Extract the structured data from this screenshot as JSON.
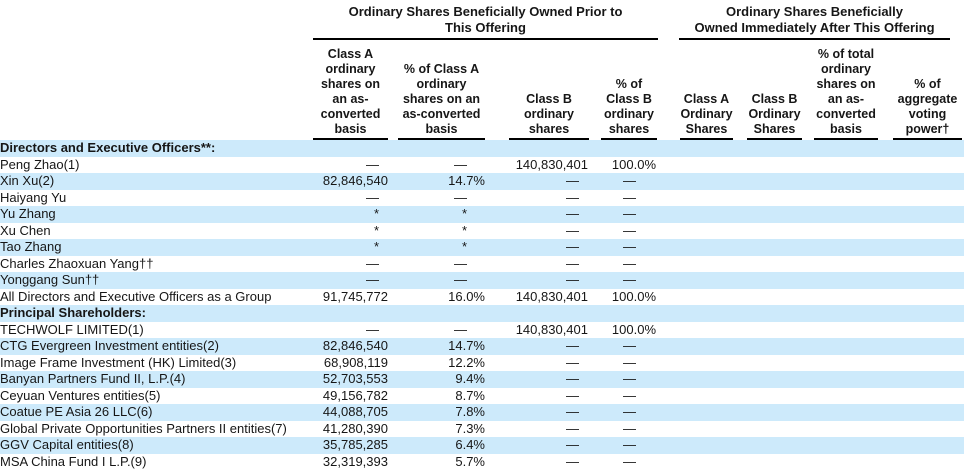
{
  "colors": {
    "stripe_blue": "#cdeafb",
    "rule_black": "#000000",
    "text": "#161616"
  },
  "table": {
    "groups": [
      {
        "title": "Ordinary Shares Beneficially Owned Prior to\nThis Offering"
      },
      {
        "title": "Ordinary Shares Beneficially\nOwned Immediately After This Offering"
      }
    ],
    "columns": [
      {
        "label": "Class A\nordinary\nshares on\nan as-\nconverted\nbasis"
      },
      {
        "label": "% of Class A\nordinary\nshares on an\nas-converted\nbasis"
      },
      {
        "label": "Class B\nordinary\nshares"
      },
      {
        "label": "% of\nClass B\nordinary\nshares"
      },
      {
        "label": "Class A\nOrdinary\nShares"
      },
      {
        "label": "Class B\nOrdinary\nShares"
      },
      {
        "label": "% of total\nordinary\nshares on\nan as-\nconverted\nbasis"
      },
      {
        "label": "% of\naggregate\nvoting\npower†"
      }
    ],
    "rows": [
      {
        "name": "Directors and Executive Officers**:",
        "section": true,
        "values": [
          "",
          "",
          "",
          "",
          "",
          "",
          "",
          ""
        ]
      },
      {
        "name": "Peng Zhao(1)",
        "values": [
          "—",
          "—",
          "140,830,401",
          "100.0%",
          "",
          "",
          "",
          ""
        ]
      },
      {
        "name": "Xin Xu(2)",
        "values": [
          "82,846,540",
          "14.7%",
          "—",
          "—",
          "",
          "",
          "",
          ""
        ]
      },
      {
        "name": "Haiyang Yu",
        "values": [
          "—",
          "—",
          "—",
          "—",
          "",
          "",
          "",
          ""
        ]
      },
      {
        "name": "Yu Zhang",
        "values": [
          "*",
          "*",
          "—",
          "—",
          "",
          "",
          "",
          ""
        ]
      },
      {
        "name": "Xu Chen",
        "values": [
          "*",
          "*",
          "—",
          "—",
          "",
          "",
          "",
          ""
        ]
      },
      {
        "name": "Tao Zhang",
        "values": [
          "*",
          "*",
          "—",
          "—",
          "",
          "",
          "",
          ""
        ]
      },
      {
        "name": "Charles Zhaoxuan Yang††",
        "values": [
          "—",
          "—",
          "—",
          "—",
          "",
          "",
          "",
          ""
        ]
      },
      {
        "name": "Yonggang Sun††",
        "values": [
          "—",
          "—",
          "—",
          "—",
          "",
          "",
          "",
          ""
        ]
      },
      {
        "name": "All Directors and Executive Officers as a Group",
        "values": [
          "91,745,772",
          "16.0%",
          "140,830,401",
          "100.0%",
          "",
          "",
          "",
          ""
        ]
      },
      {
        "name": "Principal Shareholders:",
        "section": true,
        "values": [
          "",
          "",
          "",
          "",
          "",
          "",
          "",
          ""
        ]
      },
      {
        "name": "TECHWOLF LIMITED(1)",
        "values": [
          "—",
          "—",
          "140,830,401",
          "100.0%",
          "",
          "",
          "",
          ""
        ]
      },
      {
        "name": "CTG Evergreen Investment entities(2)",
        "values": [
          "82,846,540",
          "14.7%",
          "—",
          "—",
          "",
          "",
          "",
          ""
        ]
      },
      {
        "name": "Image Frame Investment (HK) Limited(3)",
        "values": [
          "68,908,119",
          "12.2%",
          "—",
          "—",
          "",
          "",
          "",
          ""
        ]
      },
      {
        "name": "Banyan Partners Fund II, L.P.(4)",
        "values": [
          "52,703,553",
          "9.4%",
          "—",
          "—",
          "",
          "",
          "",
          ""
        ]
      },
      {
        "name": "Ceyuan Ventures entities(5)",
        "values": [
          "49,156,782",
          "8.7%",
          "—",
          "—",
          "",
          "",
          "",
          ""
        ]
      },
      {
        "name": "Coatue PE Asia 26 LLC(6)",
        "values": [
          "44,088,705",
          "7.8%",
          "—",
          "—",
          "",
          "",
          "",
          ""
        ]
      },
      {
        "name": "Global Private Opportunities Partners II entities(7)",
        "values": [
          "41,280,390",
          "7.3%",
          "—",
          "—",
          "",
          "",
          "",
          ""
        ]
      },
      {
        "name": "GGV Capital entities(8)",
        "values": [
          "35,785,285",
          "6.4%",
          "—",
          "—",
          "",
          "",
          "",
          ""
        ]
      },
      {
        "name": "MSA China Fund I L.P.(9)",
        "values": [
          "32,319,393",
          "5.7%",
          "—",
          "—",
          "",
          "",
          "",
          ""
        ]
      }
    ]
  }
}
